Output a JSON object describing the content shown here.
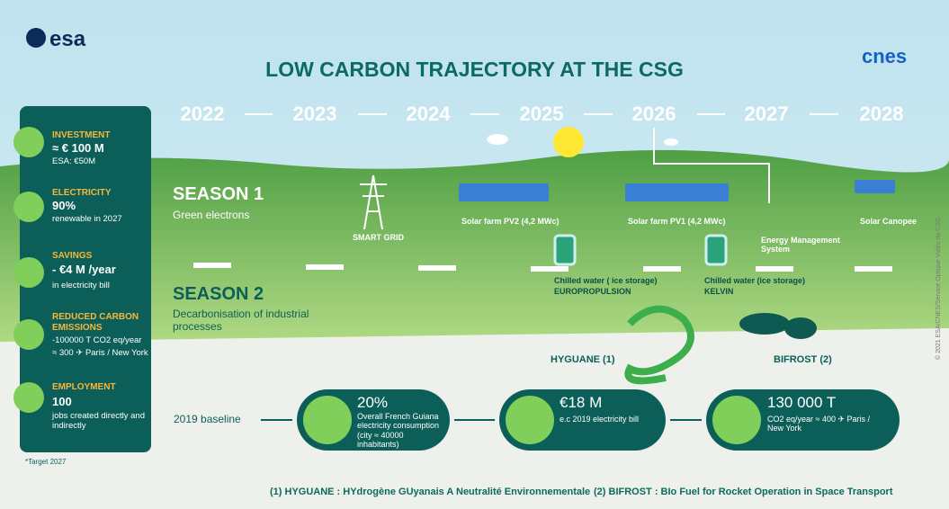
{
  "header": {
    "logo_left": "esa",
    "title": "LOW CARBON TRAJECTORY AT THE CSG",
    "logo_right": "cnes"
  },
  "years": [
    "2022",
    "2023",
    "2024",
    "2025",
    "2026",
    "2027",
    "2028"
  ],
  "sidebar": [
    {
      "heading": "INVESTMENT",
      "value": "≈ € 100 M",
      "note": "ESA: €50M"
    },
    {
      "heading": "ELECTRICITY",
      "value": "90%",
      "note": "renewable in 2027"
    },
    {
      "heading": "SAVINGS",
      "value": "- €4 M /year",
      "note": "in electricity bill"
    },
    {
      "heading": "REDUCED CARBON EMISSIONS",
      "value": "-100000 T CO2 eq/year",
      "note": "≈ 300 ✈ Paris / New York"
    },
    {
      "heading": "EMPLOYMENT",
      "value": "100",
      "note": "jobs created directly and indirectly"
    }
  ],
  "target_note": "*Target 2027",
  "season1": {
    "title": "SEASON 1",
    "subtitle": "Green electrons"
  },
  "season2": {
    "title": "SEASON 2",
    "subtitle": "Decarbonisation of industrial processes"
  },
  "projects": [
    {
      "label": "SMART GRID"
    },
    {
      "label": "Solar farm PV2 (4,2 MWc)"
    },
    {
      "label": "Solar farm PV1 (4,2 MWc)"
    },
    {
      "label": "Energy Management System"
    },
    {
      "label": "Solar Canopee"
    },
    {
      "label": "Chilled water ( ice storage)",
      "site": "EUROPROPULSION"
    },
    {
      "label": "Chilled water (ice storage)",
      "site": "KELVIN"
    },
    {
      "label": "HYGUANE (1)"
    },
    {
      "label": "BIFROST (2)"
    }
  ],
  "baseline": {
    "label": "2019 baseline",
    "items": [
      {
        "value": "20%",
        "text": "Overall French Guiana electricity consumption (city ≈ 40000 inhabitants)"
      },
      {
        "value": "€18 M",
        "text": "e.c 2019 electricity bill"
      },
      {
        "value": "130 000 T",
        "text": "CO2 eq/year ≈ 400 ✈ Paris / New York"
      }
    ]
  },
  "footnotes": [
    "(1) HYGUANE : HYdrogène GUyanais A Neutralité Environnementale",
    "(2) BIFROST : BIo Fuel for Rocket Operation in Space Transport"
  ],
  "credit": "© 2021 ESA/CNES/Service Optique Vidéo du CSG"
}
